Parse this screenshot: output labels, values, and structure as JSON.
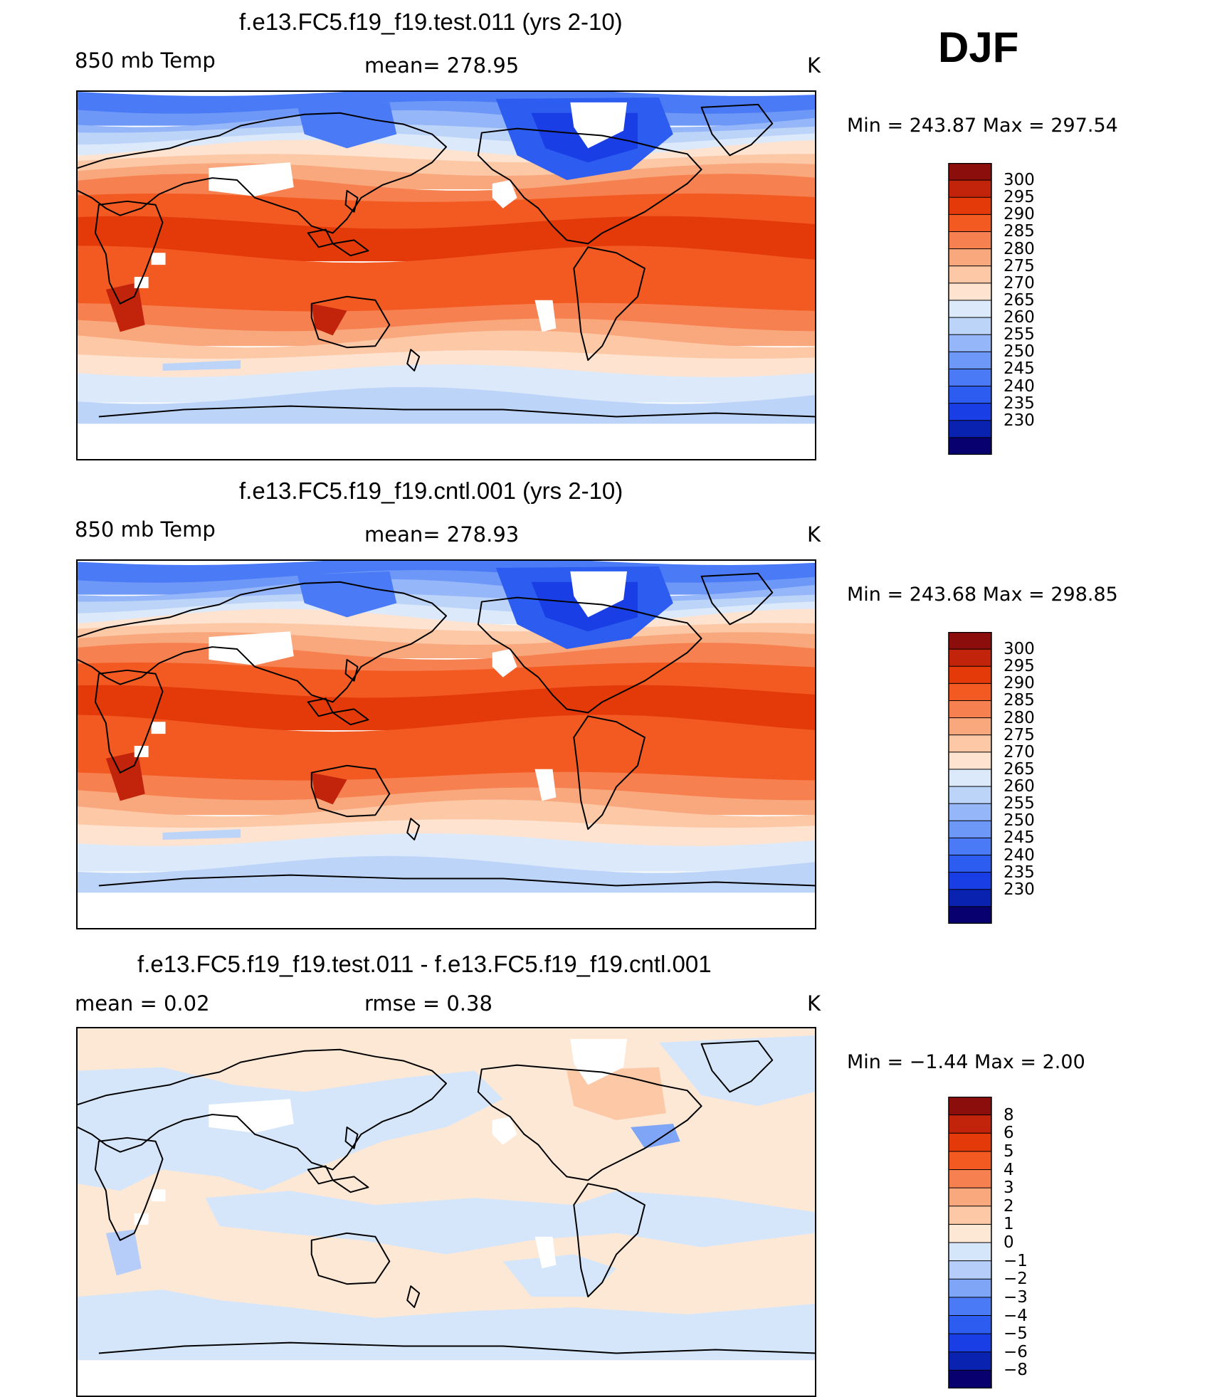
{
  "season": "DJF",
  "units": "K",
  "colors": {
    "coastline": "#000000",
    "missing": "#ffffff",
    "temp_scale": [
      "#08006e",
      "#0a22b0",
      "#1a3ee6",
      "#2c5cf0",
      "#4a7af5",
      "#6d98f7",
      "#95b6f8",
      "#bdd4f9",
      "#dbe9fb",
      "#fde3d0",
      "#fcc8a6",
      "#f9a77c",
      "#f78050",
      "#f35a22",
      "#e43a0a",
      "#c1230b",
      "#8b0d0c"
    ],
    "diff_scale": [
      "#08006e",
      "#0a22b0",
      "#1a3ee6",
      "#2c5cf0",
      "#4a7af5",
      "#7fa5f6",
      "#b6cdf9",
      "#d6e6fa",
      "#fde8d6",
      "#fcc8a6",
      "#f9a77c",
      "#f78050",
      "#f35a22",
      "#e43a0a",
      "#c1230b",
      "#8b0d0c"
    ]
  },
  "panels": [
    {
      "title": "f.e13.FC5.f19_f19.test.011 (yrs 2-10)",
      "variable": "850 mb Temp",
      "mean_label": "mean=  278.95",
      "units": "K",
      "minmax": "Min  =  243.87  Max  =  297.54",
      "ticks": [
        "300",
        "295",
        "290",
        "285",
        "280",
        "275",
        "270",
        "265",
        "260",
        "255",
        "250",
        "245",
        "240",
        "235",
        "230"
      ]
    },
    {
      "title": "f.e13.FC5.f19_f19.cntl.001 (yrs 2-10)",
      "variable": "850 mb Temp",
      "mean_label": "mean=  278.93",
      "units": "K",
      "minmax": "Min  =  243.68  Max  =  298.85",
      "ticks": [
        "300",
        "295",
        "290",
        "285",
        "280",
        "275",
        "270",
        "265",
        "260",
        "255",
        "250",
        "245",
        "240",
        "235",
        "230"
      ]
    },
    {
      "title": "f.e13.FC5.f19_f19.test.011 - f.e13.FC5.f19_f19.cntl.001",
      "variable": "mean  =     0.02",
      "mean_label": "rmse  =     0.38",
      "units": "K",
      "minmax": "Min  =    −1.44  Max  =      2.00",
      "ticks": [
        "8",
        "6",
        "5",
        "4",
        "3",
        "2",
        "1",
        "0",
        "−1",
        "−2",
        "−3",
        "−4",
        "−5",
        "−6",
        "−8"
      ]
    }
  ]
}
